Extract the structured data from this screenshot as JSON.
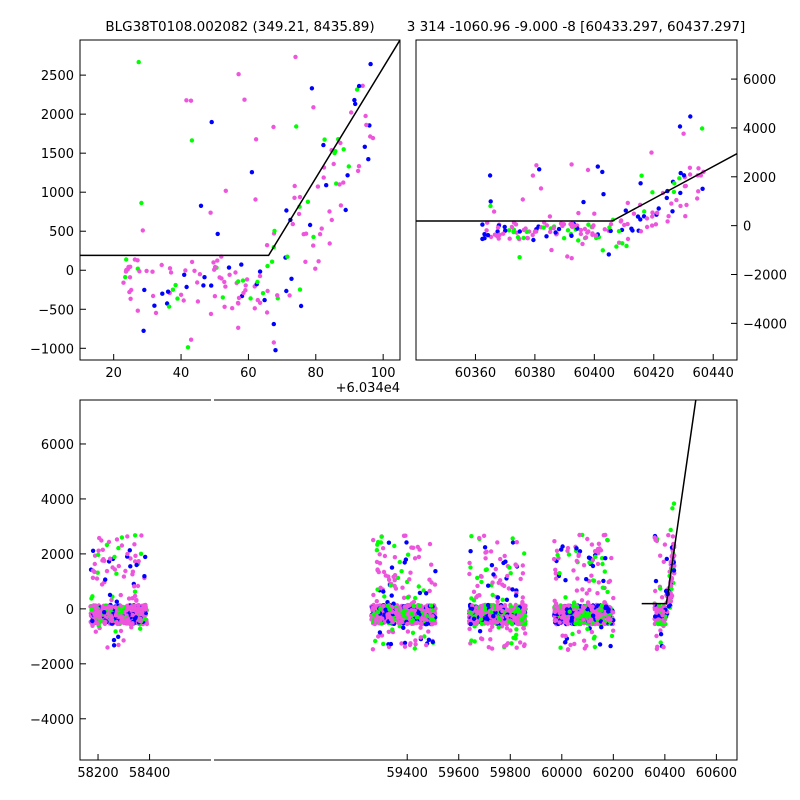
{
  "titles": {
    "left": "BLG38T0108.002082 (349.21, 8435.89)",
    "right": "3 314 -1060.96 -9.000 -8 [60433.297, 60437.297]"
  },
  "colors": {
    "green": "#00ff00",
    "blue": "#0000ff",
    "pink": "#ee55dd",
    "line": "#000000"
  },
  "chart_data": [
    {
      "type": "scatter",
      "panel": "top-left",
      "axes": {
        "xlim": [
          60350,
          60445
        ],
        "ylim": [
          -1150,
          2950
        ],
        "xticks": [
          20,
          40,
          60,
          80,
          100
        ],
        "xtick_labels": [
          "20",
          "40",
          "60",
          "80",
          "100"
        ],
        "x_offset_label": "+6.034e4",
        "yticks": [
          -1000,
          -500,
          0,
          500,
          1000,
          1500,
          2000,
          2500
        ],
        "ytick_labels": [
          "−1000",
          "−500",
          "0",
          "500",
          "1000",
          "1500",
          "2000",
          "2500"
        ],
        "ytick_side": "left",
        "grid": false
      },
      "model_line": [
        [
          60350,
          190
        ],
        [
          60406,
          190
        ],
        [
          60445,
          2950
        ]
      ],
      "seed": 11,
      "clusters": [
        {
          "lo": 60362,
          "hi": 60437
        }
      ]
    },
    {
      "type": "scatter",
      "panel": "top-right",
      "axes": {
        "xlim": [
          60340,
          60448
        ],
        "ylim": [
          -5500,
          7600
        ],
        "xticks": [
          60360,
          60380,
          60400,
          60420,
          60440
        ],
        "xtick_labels": [
          "60360",
          "60380",
          "60400",
          "60420",
          "60440"
        ],
        "yticks": [
          -4000,
          -2000,
          0,
          2000,
          4000,
          6000
        ],
        "ytick_labels": [
          "−4000",
          "−2000",
          "0",
          "2000",
          "4000",
          "6000"
        ],
        "ytick_side": "right",
        "grid": false
      },
      "model_line": [
        [
          60340,
          190
        ],
        [
          60406,
          190
        ],
        [
          60448,
          2950
        ]
      ],
      "seed": 23,
      "clusters": [
        {
          "lo": 60362,
          "hi": 60437
        }
      ]
    },
    {
      "type": "scatter",
      "panel": "bottom",
      "axes": {
        "xlim": [
          58130,
          60680
        ],
        "ylim": [
          -5500,
          7600
        ],
        "xticks": [
          58200,
          58400,
          59400,
          59600,
          59800,
          60000,
          60200,
          60400,
          60600
        ],
        "xtick_labels": [
          "58200",
          "58400",
          "59400",
          "59600",
          "59800",
          "60000",
          "60200",
          "60400",
          "60600"
        ],
        "yticks": [
          -4000,
          -2000,
          0,
          2000,
          4000,
          6000
        ],
        "ytick_labels": [
          "−4000",
          "−2000",
          "0",
          "2000",
          "4000",
          "6000"
        ],
        "ytick_side": "left",
        "grid": false
      },
      "model_line": [
        [
          60310,
          190
        ],
        [
          60406,
          190
        ],
        [
          60520,
          7600
        ]
      ],
      "seed": 37,
      "clusters": [
        {
          "lo": 58170,
          "hi": 58390
        },
        {
          "lo": 59260,
          "hi": 59510
        },
        {
          "lo": 59640,
          "hi": 59860
        },
        {
          "lo": 59970,
          "hi": 60200
        },
        {
          "lo": 60360,
          "hi": 60437
        }
      ]
    }
  ]
}
